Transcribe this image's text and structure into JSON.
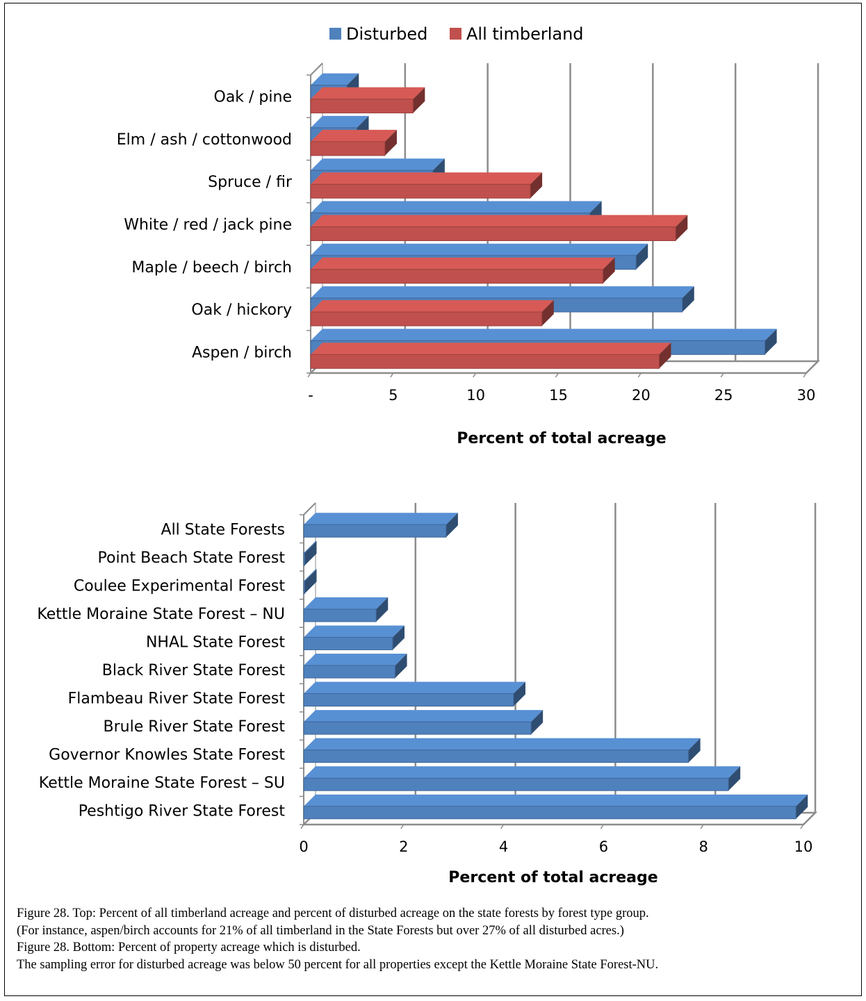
{
  "chart_data": [
    {
      "type": "bar",
      "orientation": "horizontal",
      "categories": [
        "Oak / pine",
        "Elm / ash / cottonwood",
        "Spruce / fir",
        "White / red / jack pine",
        "Maple / beech / birch",
        "Oak / hickory",
        "Aspen / birch"
      ],
      "series": [
        {
          "name": "Disturbed",
          "color": "#4F81BD",
          "values": [
            2.2,
            2.8,
            7.4,
            16.9,
            19.7,
            22.5,
            27.5
          ]
        },
        {
          "name": "All timberland",
          "color": "#C0504D",
          "values": [
            6.2,
            4.5,
            13.3,
            22.1,
            17.7,
            14.0,
            21.1
          ]
        }
      ],
      "xlabel": "Percent of total acreage",
      "xlim": [
        0,
        30
      ],
      "xticks": [
        0,
        5,
        10,
        15,
        20,
        25,
        30
      ],
      "xtick_labels": [
        "-",
        "5",
        "10",
        "15",
        "20",
        "25",
        "30"
      ],
      "legend": "top",
      "grid": "vertical"
    },
    {
      "type": "bar",
      "orientation": "horizontal",
      "categories": [
        "All State Forests",
        "Point Beach State Forest",
        "Coulee Experimental Forest",
        "Kettle Moraine State Forest – NU",
        "NHAL State Forest",
        "Black River State Forest",
        "Flambeau River State Forest",
        "Brule River State Forest",
        "Governor Knowles State Forest",
        "Kettle Moraine State Forest – SU",
        "Peshtigo River State Forest"
      ],
      "series": [
        {
          "color": "#4F81BD",
          "values": [
            2.85,
            0.0,
            0.0,
            1.45,
            1.78,
            1.83,
            4.2,
            4.55,
            7.7,
            8.5,
            9.85
          ]
        }
      ],
      "xlabel": "Percent of total acreage",
      "xlim": [
        0,
        10
      ],
      "xticks": [
        0,
        2,
        4,
        6,
        8,
        10
      ],
      "xtick_labels": [
        "0",
        "2",
        "4",
        "6",
        "8",
        "10"
      ],
      "grid": "vertical"
    }
  ],
  "caption": [
    "Figure 28.  Top: Percent of all timberland acreage and percent of disturbed acreage on the state forests by forest type group.",
    " (For instance, aspen/birch accounts for 21% of all timberland in the State Forests but over 27% of all disturbed acres.)",
    "Figure 28.  Bottom: Percent of property acreage which is disturbed.",
    " The sampling error for disturbed acreage was below 50 percent for all properties except the Kettle Moraine State Forest-NU."
  ]
}
